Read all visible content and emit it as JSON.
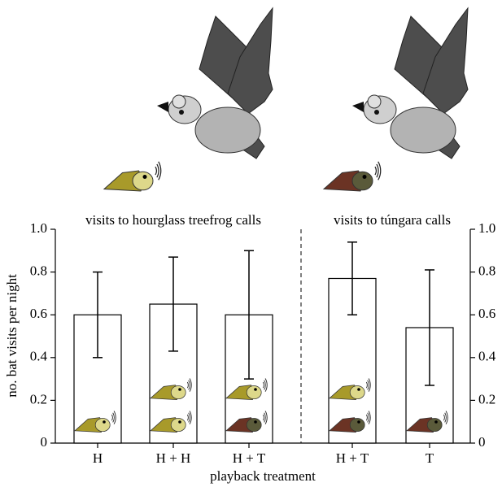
{
  "chart_data": {
    "type": "bar",
    "categories": [
      "H",
      "H + H",
      "H + T",
      "H + T",
      "T"
    ],
    "values": [
      0.6,
      0.65,
      0.6,
      0.77,
      0.54
    ],
    "errors": [
      0.2,
      0.22,
      0.3,
      0.17,
      0.27
    ],
    "color": "#ffffff",
    "ylim": [
      0,
      1
    ],
    "yticks": [
      0,
      0.2,
      0.4,
      0.6,
      0.8,
      {
        "value": 1,
        "label": "1.0"
      }
    ],
    "xlabel": "playback treatment",
    "ylabel": "no. bat visits per night",
    "annotations": [
      "visits to hourglass treefrog calls",
      "visits to túngara calls"
    ]
  }
}
